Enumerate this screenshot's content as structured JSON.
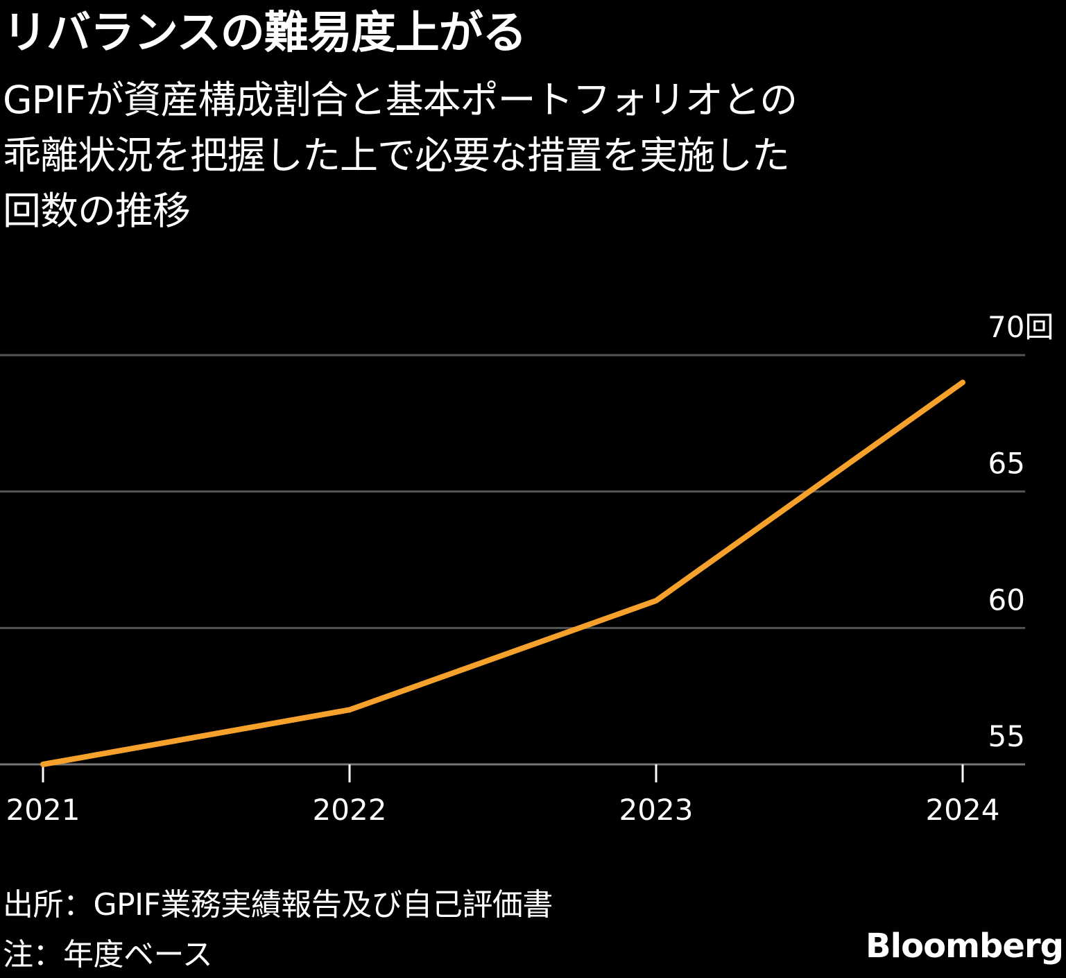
{
  "chart_data": {
    "type": "line",
    "title": "リバランスの難易度上がる",
    "subtitle_lines": [
      "GPIFが資産構成割合と基本ポートフォリオとの",
      "乖離状況を把握した上で必要な措置を実施した",
      "回数の推移"
    ],
    "x": [
      "2021",
      "2022",
      "2023",
      "2024"
    ],
    "series": [
      {
        "values": [
          55,
          57,
          61,
          69
        ]
      }
    ],
    "y_ticks": [
      {
        "value": 70,
        "label": "70回"
      },
      {
        "value": 65,
        "label": "65"
      },
      {
        "value": 60,
        "label": "60"
      },
      {
        "value": 55,
        "label": "55"
      }
    ],
    "ylim": [
      55,
      70
    ],
    "grid": true,
    "y_axis_side": "right",
    "line_color": "#f5a12c",
    "grid_color": "#555555",
    "background": "#000000"
  },
  "footer": {
    "source": "出所：GPIF業務実績報告及び自己評価書",
    "note": "注：年度ベース",
    "brand": "Bloomberg"
  }
}
